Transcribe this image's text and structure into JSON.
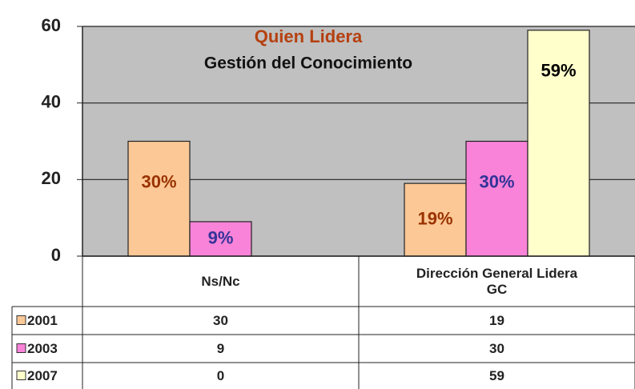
{
  "chart_data": {
    "type": "bar",
    "title": "Quien Lidera",
    "subtitle": "Gestión del Conocimiento",
    "categories": [
      "Ns/Nc",
      "Dirección General Lidera GC"
    ],
    "series": [
      {
        "name": "2001",
        "color": "#fcc896",
        "label_color": "#993300",
        "values": [
          30,
          19
        ],
        "value_labels": [
          "30%",
          "19%"
        ]
      },
      {
        "name": "2003",
        "color": "#f883d8",
        "label_color": "#333399",
        "values": [
          9,
          30
        ],
        "value_labels": [
          "9%",
          "30%"
        ]
      },
      {
        "name": "2007",
        "color": "#ffffcc",
        "label_color": "#000000",
        "values": [
          0,
          59
        ],
        "value_labels": [
          null,
          "59%"
        ]
      }
    ],
    "ylim": [
      0,
      60
    ],
    "yticks": [
      0,
      20,
      40,
      60
    ],
    "grid": true,
    "data_table": true
  }
}
